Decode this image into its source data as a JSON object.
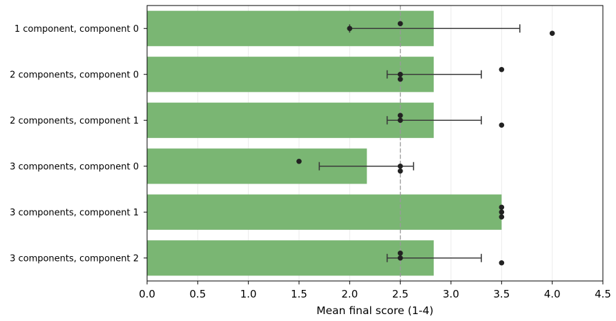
{
  "chart_data": {
    "type": "bar",
    "orientation": "horizontal",
    "xlabel": "Mean final score (1-4)",
    "ylabel": "",
    "title": "",
    "xlim": [
      0,
      4.5
    ],
    "xticks": [
      "0.0",
      "0.5",
      "1.0",
      "1.5",
      "2.0",
      "2.5",
      "3.0",
      "3.5",
      "4.0",
      "4.5"
    ],
    "grid": "vertical",
    "reference_line": {
      "x": 2.5,
      "style": "dashed",
      "color": "#9a9a9a"
    },
    "bar_color": "#7ab673",
    "point_color": "#222222",
    "categories": [
      "1 component, component 0",
      "2 components, component 0",
      "2 components, component 1",
      "3 components, component 0",
      "3 components, component 1",
      "3 components, component 2"
    ],
    "values": [
      2.83,
      2.83,
      2.83,
      2.17,
      3.5,
      2.83
    ],
    "error_low": [
      2.0,
      2.37,
      2.37,
      1.7,
      null,
      2.37
    ],
    "error_high": [
      3.68,
      3.3,
      3.3,
      2.63,
      null,
      3.3
    ],
    "points": [
      [
        2.5,
        2.0,
        4.0
      ],
      [
        3.5,
        2.5,
        2.5
      ],
      [
        2.5,
        2.5,
        3.5
      ],
      [
        1.5,
        2.5,
        2.5
      ],
      [
        3.5,
        3.5,
        3.5
      ],
      [
        2.5,
        2.5,
        3.5
      ]
    ]
  }
}
